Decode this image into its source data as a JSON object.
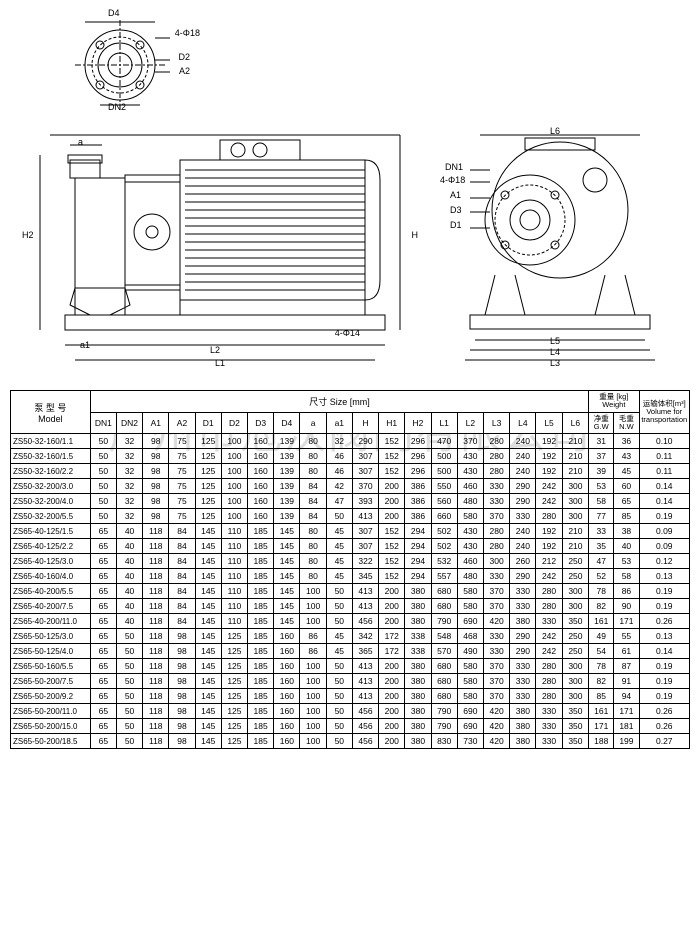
{
  "watermark": "广州市冠沃阀门有限公司",
  "drawing_labels": {
    "flange": [
      "D4",
      "4-Φ18",
      "D2",
      "A2",
      "DN2"
    ],
    "side": [
      "a",
      "a1",
      "H2",
      "L2",
      "L1",
      "4-Φ14",
      "H"
    ],
    "front": [
      "L6",
      "DN1",
      "4-Φ18",
      "A1",
      "D3",
      "D1",
      "L5",
      "L4",
      "L3"
    ]
  },
  "headers": {
    "model": "泵 型 号\nModel",
    "size": "尺寸 Size [mm]",
    "weight": "重量 [kg]\nWeight",
    "volume": "运输体积[m³]\nVolume for\ntransportation",
    "dims": [
      "DN1",
      "DN2",
      "A1",
      "A2",
      "D1",
      "D2",
      "D3",
      "D4",
      "a",
      "a1",
      "H",
      "H1",
      "H2",
      "L1",
      "L2",
      "L3",
      "L4",
      "L5",
      "L6"
    ],
    "gw": "净重\nG.W",
    "nw": "毛重\nN.W"
  },
  "rows": [
    {
      "model": "ZS50-32-160/1.1",
      "d": [
        50,
        32,
        98,
        75,
        125,
        100,
        160,
        139,
        80,
        32,
        290,
        152,
        296,
        470,
        370,
        280,
        240,
        192,
        210
      ],
      "gw": 31,
      "nw": 36,
      "vol": "0.10"
    },
    {
      "model": "ZS50-32-160/1.5",
      "d": [
        50,
        32,
        98,
        75,
        125,
        100,
        160,
        139,
        80,
        46,
        307,
        152,
        296,
        500,
        430,
        280,
        240,
        192,
        210
      ],
      "gw": 37,
      "nw": 43,
      "vol": "0.11"
    },
    {
      "model": "ZS50-32-160/2.2",
      "d": [
        50,
        32,
        98,
        75,
        125,
        100,
        160,
        139,
        80,
        46,
        307,
        152,
        296,
        500,
        430,
        280,
        240,
        192,
        210
      ],
      "gw": 39,
      "nw": 45,
      "vol": "0.11"
    },
    {
      "model": "ZS50-32-200/3.0",
      "d": [
        50,
        32,
        98,
        75,
        125,
        100,
        160,
        139,
        84,
        42,
        370,
        200,
        386,
        550,
        460,
        330,
        290,
        242,
        300
      ],
      "gw": 53,
      "nw": 60,
      "vol": "0.14"
    },
    {
      "model": "ZS50-32-200/4.0",
      "d": [
        50,
        32,
        98,
        75,
        125,
        100,
        160,
        139,
        84,
        47,
        393,
        200,
        386,
        560,
        480,
        330,
        290,
        242,
        300
      ],
      "gw": 58,
      "nw": 65,
      "vol": "0.14"
    },
    {
      "model": "ZS50-32-200/5.5",
      "d": [
        50,
        32,
        98,
        75,
        125,
        100,
        160,
        139,
        84,
        50,
        413,
        200,
        386,
        660,
        580,
        370,
        330,
        280,
        300
      ],
      "gw": 77,
      "nw": 85,
      "vol": "0.19"
    },
    {
      "model": "ZS65-40-125/1.5",
      "d": [
        65,
        40,
        118,
        84,
        145,
        110,
        185,
        145,
        80,
        45,
        307,
        152,
        294,
        502,
        430,
        280,
        240,
        192,
        210
      ],
      "gw": 33,
      "nw": 38,
      "vol": "0.09"
    },
    {
      "model": "ZS65-40-125/2.2",
      "d": [
        65,
        40,
        118,
        84,
        145,
        110,
        185,
        145,
        80,
        45,
        307,
        152,
        294,
        502,
        430,
        280,
        240,
        192,
        210
      ],
      "gw": 35,
      "nw": 40,
      "vol": "0.09"
    },
    {
      "model": "ZS65-40-125/3.0",
      "d": [
        65,
        40,
        118,
        84,
        145,
        110,
        185,
        145,
        80,
        45,
        322,
        152,
        294,
        532,
        460,
        300,
        260,
        212,
        250
      ],
      "gw": 47,
      "nw": 53,
      "vol": "0.12"
    },
    {
      "model": "ZS65-40-160/4.0",
      "d": [
        65,
        40,
        118,
        84,
        145,
        110,
        185,
        145,
        80,
        45,
        345,
        152,
        294,
        557,
        480,
        330,
        290,
        242,
        250
      ],
      "gw": 52,
      "nw": 58,
      "vol": "0.13"
    },
    {
      "model": "ZS65-40-200/5.5",
      "d": [
        65,
        40,
        118,
        84,
        145,
        110,
        185,
        145,
        100,
        50,
        413,
        200,
        380,
        680,
        580,
        370,
        330,
        280,
        300
      ],
      "gw": 78,
      "nw": 86,
      "vol": "0.19"
    },
    {
      "model": "ZS65-40-200/7.5",
      "d": [
        65,
        40,
        118,
        84,
        145,
        110,
        185,
        145,
        100,
        50,
        413,
        200,
        380,
        680,
        580,
        370,
        330,
        280,
        300
      ],
      "gw": 82,
      "nw": 90,
      "vol": "0.19"
    },
    {
      "model": "ZS65-40-200/11.0",
      "d": [
        65,
        40,
        118,
        84,
        145,
        110,
        185,
        145,
        100,
        50,
        456,
        200,
        380,
        790,
        690,
        420,
        380,
        330,
        350
      ],
      "gw": 161,
      "nw": 171,
      "vol": "0.26"
    },
    {
      "model": "ZS65-50-125/3.0",
      "d": [
        65,
        50,
        118,
        98,
        145,
        125,
        185,
        160,
        86,
        45,
        342,
        172,
        338,
        548,
        468,
        330,
        290,
        242,
        250
      ],
      "gw": 49,
      "nw": 55,
      "vol": "0.13"
    },
    {
      "model": "ZS65-50-125/4.0",
      "d": [
        65,
        50,
        118,
        98,
        145,
        125,
        185,
        160,
        86,
        45,
        365,
        172,
        338,
        570,
        490,
        330,
        290,
        242,
        250
      ],
      "gw": 54,
      "nw": 61,
      "vol": "0.14"
    },
    {
      "model": "ZS65-50-160/5.5",
      "d": [
        65,
        50,
        118,
        98,
        145,
        125,
        185,
        160,
        100,
        50,
        413,
        200,
        380,
        680,
        580,
        370,
        330,
        280,
        300
      ],
      "gw": 78,
      "nw": 87,
      "vol": "0.19"
    },
    {
      "model": "ZS65-50-200/7.5",
      "d": [
        65,
        50,
        118,
        98,
        145,
        125,
        185,
        160,
        100,
        50,
        413,
        200,
        380,
        680,
        580,
        370,
        330,
        280,
        300
      ],
      "gw": 82,
      "nw": 91,
      "vol": "0.19"
    },
    {
      "model": "ZS65-50-200/9.2",
      "d": [
        65,
        50,
        118,
        98,
        145,
        125,
        185,
        160,
        100,
        50,
        413,
        200,
        380,
        680,
        580,
        370,
        330,
        280,
        300
      ],
      "gw": 85,
      "nw": 94,
      "vol": "0.19"
    },
    {
      "model": "ZS65-50-200/11.0",
      "d": [
        65,
        50,
        118,
        98,
        145,
        125,
        185,
        160,
        100,
        50,
        456,
        200,
        380,
        790,
        690,
        420,
        380,
        330,
        350
      ],
      "gw": 161,
      "nw": 171,
      "vol": "0.26"
    },
    {
      "model": "ZS65-50-200/15.0",
      "d": [
        65,
        50,
        118,
        98,
        145,
        125,
        185,
        160,
        100,
        50,
        456,
        200,
        380,
        790,
        690,
        420,
        380,
        330,
        350
      ],
      "gw": 171,
      "nw": 181,
      "vol": "0.26"
    },
    {
      "model": "ZS65-50-200/18.5",
      "d": [
        65,
        50,
        118,
        98,
        145,
        125,
        185,
        160,
        100,
        50,
        456,
        200,
        380,
        830,
        730,
        420,
        380,
        330,
        350
      ],
      "gw": 188,
      "nw": 199,
      "vol": "0.27"
    }
  ],
  "style": {
    "font_size_table": 8.5,
    "border_color": "#000000",
    "background": "#ffffff",
    "watermark_color": "#dddddd"
  }
}
